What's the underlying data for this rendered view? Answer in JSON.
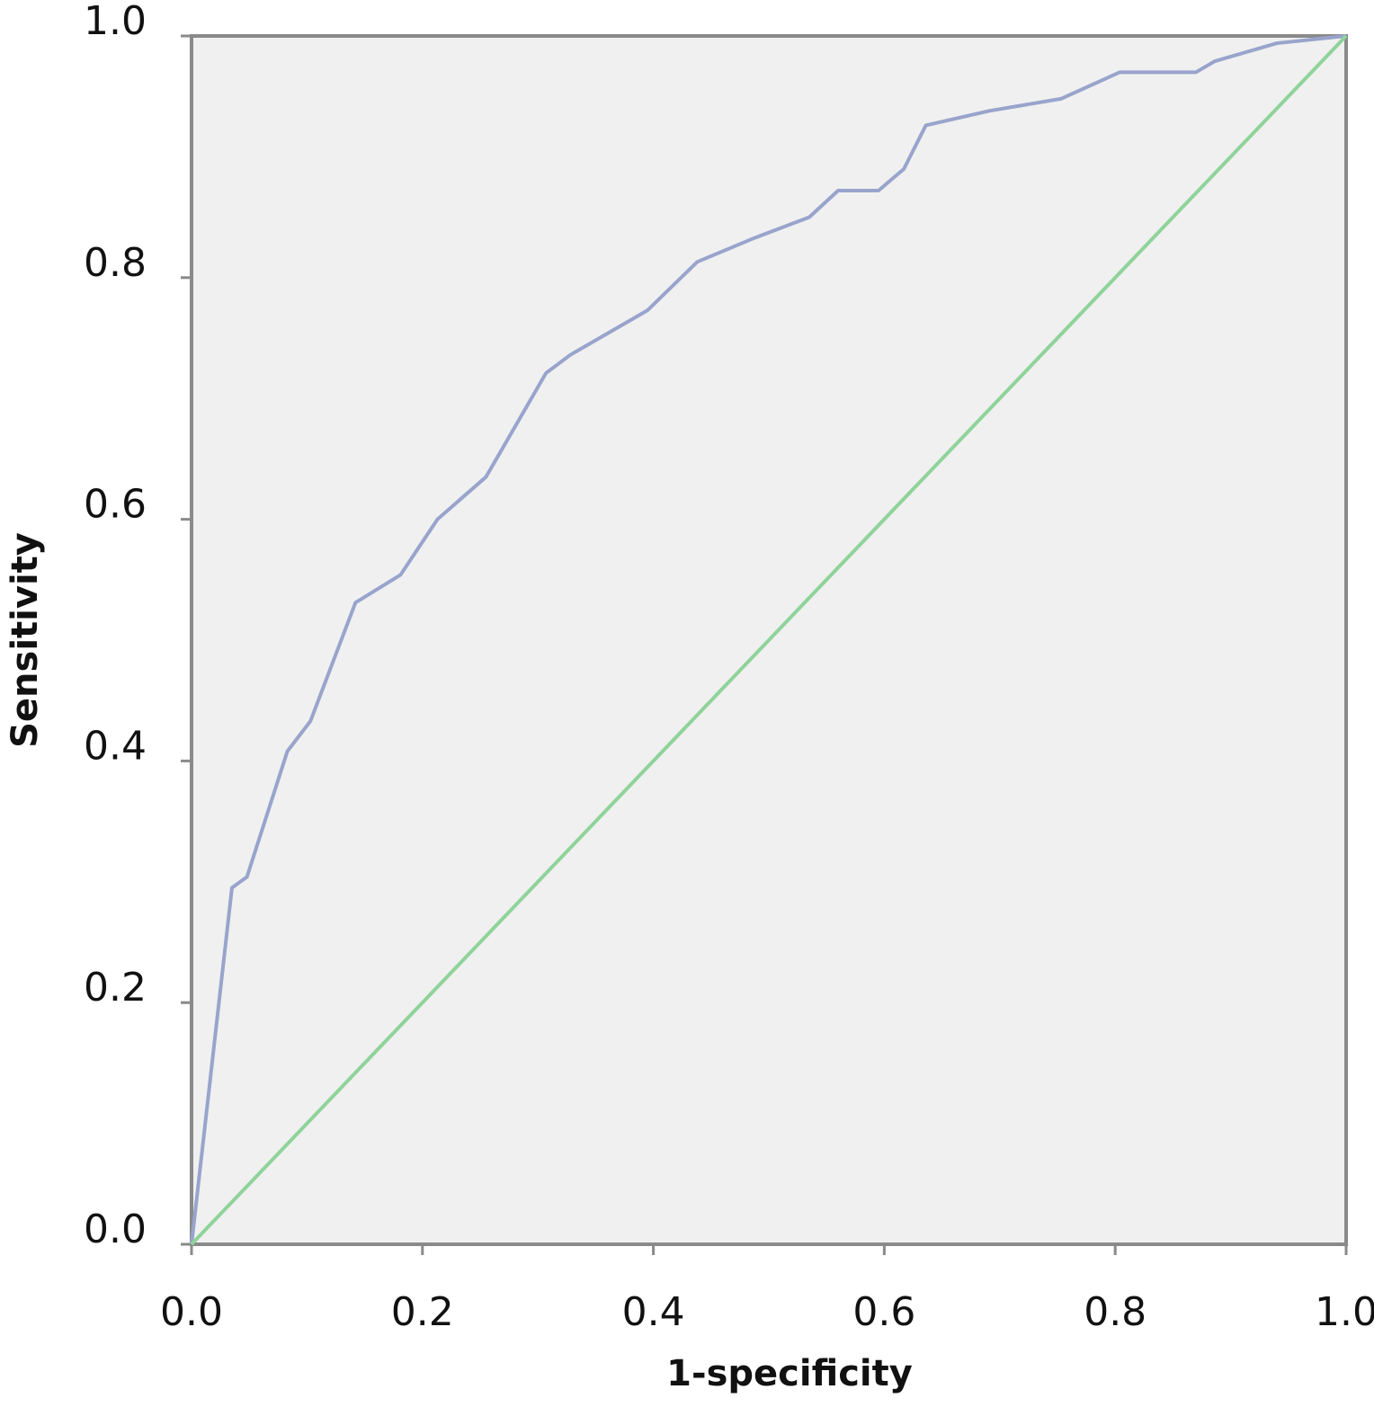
{
  "chart_data": {
    "type": "line",
    "xlabel": "1-specificity",
    "ylabel": "Sensitivity",
    "xlim": [
      0,
      1
    ],
    "ylim": [
      0,
      1
    ],
    "xticks": [
      {
        "value": 0,
        "label": "0.0"
      },
      0.2,
      0.4,
      0.6,
      0.8,
      {
        "value": 1,
        "label": "1.0"
      }
    ],
    "yticks": [
      {
        "value": 0,
        "label": "0.0"
      },
      0.2,
      0.4,
      0.6,
      0.8,
      {
        "value": 1,
        "label": "1.0"
      }
    ],
    "grid": false,
    "series": [
      {
        "color": "#98a4cc",
        "x": [
          0,
          0.035,
          0.048,
          0.083,
          0.103,
          0.142,
          0.181,
          0.213,
          0.255,
          0.307,
          0.328,
          0.395,
          0.438,
          0.488,
          0.535,
          0.56,
          0.595,
          0.617,
          0.636,
          0.691,
          0.753,
          0.804,
          0.87,
          0.886,
          0.94,
          1
        ],
        "values": [
          0,
          0.295,
          0.304,
          0.408,
          0.433,
          0.531,
          0.554,
          0.6,
          0.635,
          0.721,
          0.736,
          0.773,
          0.813,
          0.833,
          0.85,
          0.872,
          0.872,
          0.89,
          0.926,
          0.938,
          0.948,
          0.97,
          0.97,
          0.979,
          0.994,
          1
        ]
      },
      {
        "color": "#8fd39a",
        "x": [
          0,
          1
        ],
        "values": [
          0,
          1
        ]
      }
    ]
  }
}
